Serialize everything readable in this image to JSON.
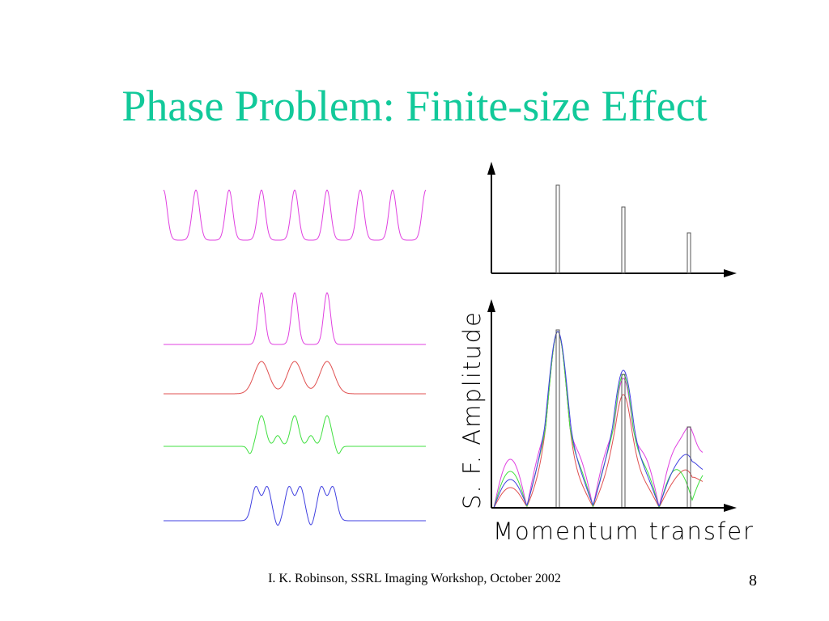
{
  "slide": {
    "title": "Phase Problem: Finite-size Effect",
    "footer": "I. K. Robinson, SSRL Imaging Workshop, October 2002",
    "page_number": "8",
    "title_color": "#12c99a"
  },
  "figure": {
    "ylabel": "S.  F.  Amplitude",
    "xlabel": "Momentum  transfer",
    "colors": {
      "magenta": "#e040e0",
      "red": "#e05050",
      "green": "#40e040",
      "blue": "#4040e0",
      "axis": "#000000",
      "bragg": "#555555"
    }
  }
}
